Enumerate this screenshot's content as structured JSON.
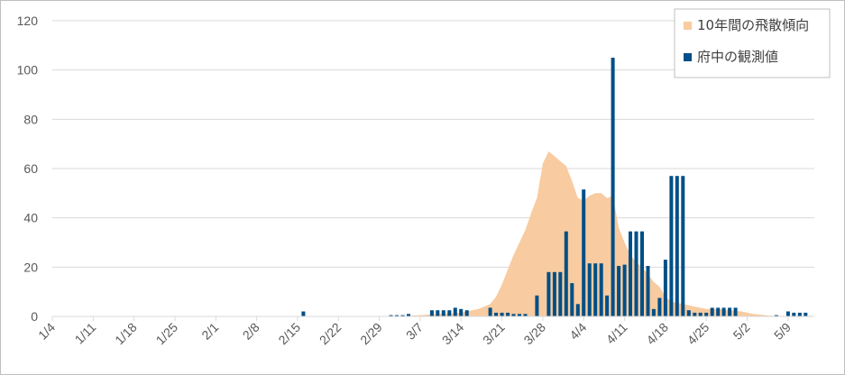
{
  "chart_data": {
    "type": "bar",
    "title": "",
    "xlabel": "",
    "ylabel": "",
    "ylim": [
      0,
      120
    ],
    "yticks": [
      0,
      20,
      40,
      60,
      80,
      100,
      120
    ],
    "x_tick_labels": [
      "1/4",
      "1/11",
      "1/18",
      "1/25",
      "2/1",
      "2/8",
      "2/15",
      "2/22",
      "2/29",
      "3/7",
      "3/14",
      "3/21",
      "3/28",
      "4/4",
      "4/11",
      "4/18",
      "4/25",
      "5/2",
      "5/9"
    ],
    "grid": true,
    "legend_position": "top-right",
    "x_start": "1/4",
    "series": [
      {
        "name": "10年間の飛散傾向",
        "kind": "area",
        "color": "#f8cba0",
        "points": [
          [
            "3/3",
            0
          ],
          [
            "3/7",
            0.5
          ],
          [
            "3/10",
            1
          ],
          [
            "3/14",
            1.5
          ],
          [
            "3/17",
            3
          ],
          [
            "3/19",
            5
          ],
          [
            "3/20",
            8
          ],
          [
            "3/21",
            13
          ],
          [
            "3/23",
            25
          ],
          [
            "3/24",
            30
          ],
          [
            "3/25",
            35
          ],
          [
            "3/26",
            42
          ],
          [
            "3/27",
            48
          ],
          [
            "3/28",
            62
          ],
          [
            "3/29",
            67
          ],
          [
            "3/30",
            65
          ],
          [
            "3/31",
            63
          ],
          [
            "4/1",
            61
          ],
          [
            "4/2",
            55
          ],
          [
            "4/3",
            48
          ],
          [
            "4/4",
            47
          ],
          [
            "4/5",
            49
          ],
          [
            "4/6",
            50
          ],
          [
            "4/7",
            50
          ],
          [
            "4/8",
            48
          ],
          [
            "4/9",
            49
          ],
          [
            "4/10",
            36
          ],
          [
            "4/11",
            30
          ],
          [
            "4/12",
            25
          ],
          [
            "4/13",
            22
          ],
          [
            "4/14",
            20
          ],
          [
            "4/15",
            17
          ],
          [
            "4/16",
            14
          ],
          [
            "4/17",
            12
          ],
          [
            "4/18",
            8
          ],
          [
            "4/19",
            6
          ],
          [
            "4/21",
            5
          ],
          [
            "4/23",
            4
          ],
          [
            "4/25",
            3
          ],
          [
            "4/27",
            3
          ],
          [
            "4/29",
            2.5
          ],
          [
            "5/1",
            2
          ],
          [
            "5/3",
            1
          ],
          [
            "5/6",
            0.3
          ],
          [
            "5/9",
            0.2
          ],
          [
            "5/13",
            0.3
          ]
        ]
      },
      {
        "name": "府中の観測値",
        "kind": "bar",
        "color": "#004f86",
        "points": [
          [
            "2/16",
            2
          ],
          [
            "3/2",
            0.5
          ],
          [
            "3/3",
            0.5
          ],
          [
            "3/4",
            0.5
          ],
          [
            "3/5",
            1
          ],
          [
            "3/9",
            2.5
          ],
          [
            "3/10",
            2.5
          ],
          [
            "3/11",
            2.5
          ],
          [
            "3/12",
            2.5
          ],
          [
            "3/13",
            3.5
          ],
          [
            "3/14",
            3
          ],
          [
            "3/15",
            2.5
          ],
          [
            "3/19",
            3.5
          ],
          [
            "3/20",
            1.5
          ],
          [
            "3/21",
            1.5
          ],
          [
            "3/22",
            1.5
          ],
          [
            "3/23",
            1
          ],
          [
            "3/24",
            1
          ],
          [
            "3/25",
            1
          ],
          [
            "3/27",
            8.5
          ],
          [
            "3/29",
            18
          ],
          [
            "3/30",
            18
          ],
          [
            "3/31",
            18
          ],
          [
            "4/1",
            34.5
          ],
          [
            "4/2",
            13.5
          ],
          [
            "4/3",
            5
          ],
          [
            "4/4",
            51.5
          ],
          [
            "4/5",
            21.5
          ],
          [
            "4/6",
            21.5
          ],
          [
            "4/7",
            21.5
          ],
          [
            "4/8",
            8.5
          ],
          [
            "4/9",
            105
          ],
          [
            "4/10",
            20.5
          ],
          [
            "4/11",
            21
          ],
          [
            "4/12",
            34.5
          ],
          [
            "4/13",
            34.5
          ],
          [
            "4/14",
            34.5
          ],
          [
            "4/15",
            20.5
          ],
          [
            "4/16",
            3
          ],
          [
            "4/17",
            7.5
          ],
          [
            "4/18",
            23
          ],
          [
            "4/19",
            57
          ],
          [
            "4/20",
            57
          ],
          [
            "4/21",
            57
          ],
          [
            "4/22",
            2.5
          ],
          [
            "4/23",
            1.5
          ],
          [
            "4/24",
            1.5
          ],
          [
            "4/25",
            1.5
          ],
          [
            "4/26",
            3.5
          ],
          [
            "4/27",
            3.5
          ],
          [
            "4/28",
            3.5
          ],
          [
            "4/29",
            3.5
          ],
          [
            "4/30",
            3.5
          ],
          [
            "5/7",
            0.5
          ],
          [
            "5/9",
            2
          ],
          [
            "5/10",
            1.5
          ],
          [
            "5/11",
            1.5
          ],
          [
            "5/12",
            1.5
          ]
        ]
      }
    ]
  }
}
